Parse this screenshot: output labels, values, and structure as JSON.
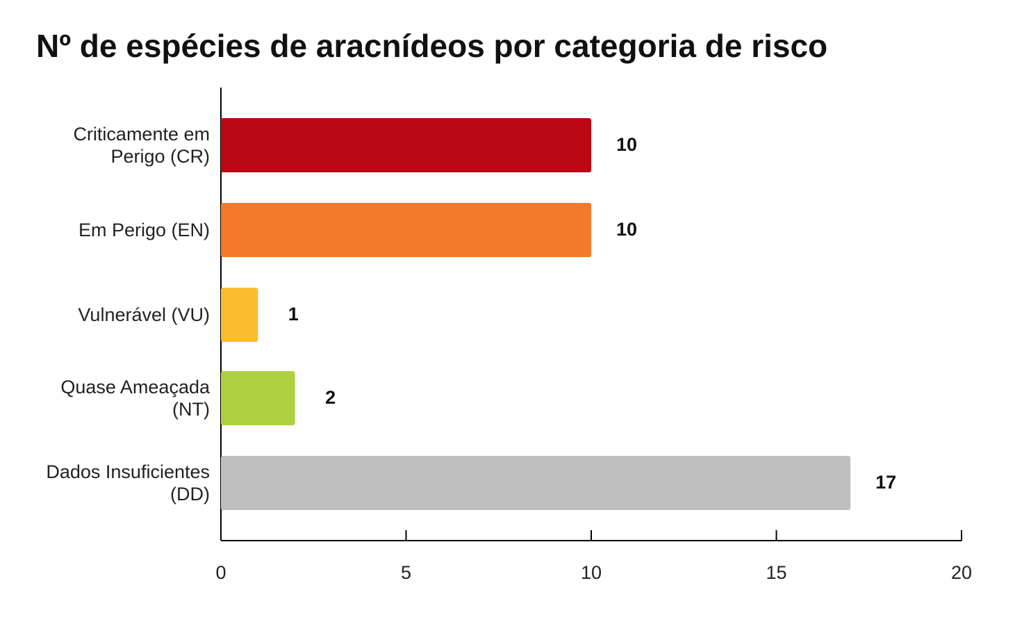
{
  "chart_data": {
    "type": "barh",
    "title": "Nº de espécies de aracnídeos por categoria de risco",
    "categories": [
      "Criticamente em Perigo (CR)",
      "Em Perigo (EN)",
      "Vulnerável (VU)",
      "Quase Ameaçada (NT)",
      "Dados Insuficientes (DD)"
    ],
    "values": [
      10,
      10,
      1,
      2,
      17
    ],
    "colors": [
      "#bd0816",
      "#f27a2a",
      "#fbbc30",
      "#aed143",
      "#bfbfbf"
    ],
    "xlim": [
      0,
      20
    ],
    "xticks": [
      0,
      5,
      10,
      15,
      20
    ],
    "grid": false
  }
}
